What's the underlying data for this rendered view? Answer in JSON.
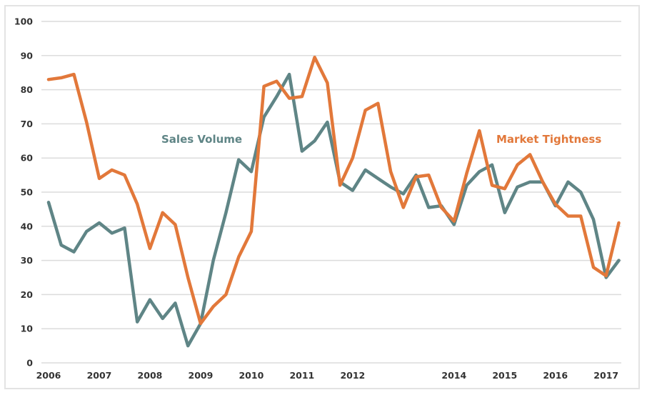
{
  "chart_data": {
    "type": "line",
    "title": "",
    "xlabel": "",
    "ylabel": "",
    "ylim": [
      0,
      100
    ],
    "yticks": [
      0,
      10,
      20,
      30,
      40,
      50,
      60,
      70,
      80,
      90,
      100
    ],
    "xticks": [
      {
        "label": "2006",
        "x": 2006.0
      },
      {
        "label": "2007",
        "x": 2007.0
      },
      {
        "label": "2008",
        "x": 2008.0
      },
      {
        "label": "2009",
        "x": 2009.0
      },
      {
        "label": "2010",
        "x": 2010.0
      },
      {
        "label": "2011",
        "x": 2011.0
      },
      {
        "label": "2012",
        "x": 2012.0
      },
      {
        "label": "2014",
        "x": 2014.0
      },
      {
        "label": "2015",
        "x": 2015.0
      },
      {
        "label": "2016",
        "x": 2016.0
      },
      {
        "label": "2017",
        "x": 2017.0
      }
    ],
    "grid": true,
    "legend": "inline labels",
    "series": [
      {
        "name": "Sales Volume",
        "color": "#5f8586",
        "x": [
          2006.0,
          2006.25,
          2006.5,
          2006.75,
          2007.0,
          2007.25,
          2007.5,
          2007.75,
          2008.0,
          2008.25,
          2008.5,
          2008.75,
          2009.0,
          2009.25,
          2009.5,
          2009.75,
          2010.0,
          2010.25,
          2010.5,
          2010.75,
          2011.0,
          2011.25,
          2011.5,
          2011.75,
          2012.0,
          2012.25,
          2012.5,
          2012.75,
          2013.0,
          2013.25,
          2013.5,
          2013.75,
          2014.0,
          2014.25,
          2014.5,
          2014.75,
          2015.0,
          2015.25,
          2015.5,
          2015.75,
          2016.0,
          2016.25,
          2016.5,
          2016.75,
          2017.0,
          2017.25
        ],
        "values": [
          47,
          34.5,
          32.5,
          38.5,
          41,
          38,
          39.5,
          12,
          18.5,
          13,
          17.5,
          5,
          11.5,
          30,
          44,
          59.5,
          56,
          72,
          78,
          84.5,
          62,
          65,
          70.5,
          53,
          50.5,
          56.5,
          54,
          51.5,
          49.5,
          55,
          45.5,
          46,
          40.5,
          52,
          56,
          58,
          44,
          51.5,
          53,
          53,
          46,
          53,
          50,
          42,
          25,
          30
        ]
      },
      {
        "name": "Market Tightness",
        "color": "#e2783a",
        "x": [
          2006.0,
          2006.25,
          2006.5,
          2006.75,
          2007.0,
          2007.25,
          2007.5,
          2007.75,
          2008.0,
          2008.25,
          2008.5,
          2008.75,
          2009.0,
          2009.25,
          2009.5,
          2009.75,
          2010.0,
          2010.25,
          2010.5,
          2010.75,
          2011.0,
          2011.25,
          2011.5,
          2011.75,
          2012.0,
          2012.25,
          2012.5,
          2012.75,
          2013.0,
          2013.25,
          2013.5,
          2013.75,
          2014.0,
          2014.25,
          2014.5,
          2014.75,
          2015.0,
          2015.25,
          2015.5,
          2015.75,
          2016.0,
          2016.25,
          2016.5,
          2016.75,
          2017.0,
          2017.25
        ],
        "values": [
          83,
          83.5,
          84.5,
          70.5,
          54,
          56.5,
          55,
          46.5,
          33.5,
          44,
          40.5,
          25,
          11.5,
          16.5,
          20,
          31,
          38.5,
          81,
          82.5,
          77.5,
          78,
          89.5,
          82,
          52,
          60,
          74,
          76,
          56,
          45.5,
          54.5,
          55,
          45.5,
          41.5,
          55.5,
          68,
          52,
          51,
          58,
          61,
          53,
          46.5,
          43,
          43,
          28,
          25.5,
          41
        ]
      }
    ]
  }
}
